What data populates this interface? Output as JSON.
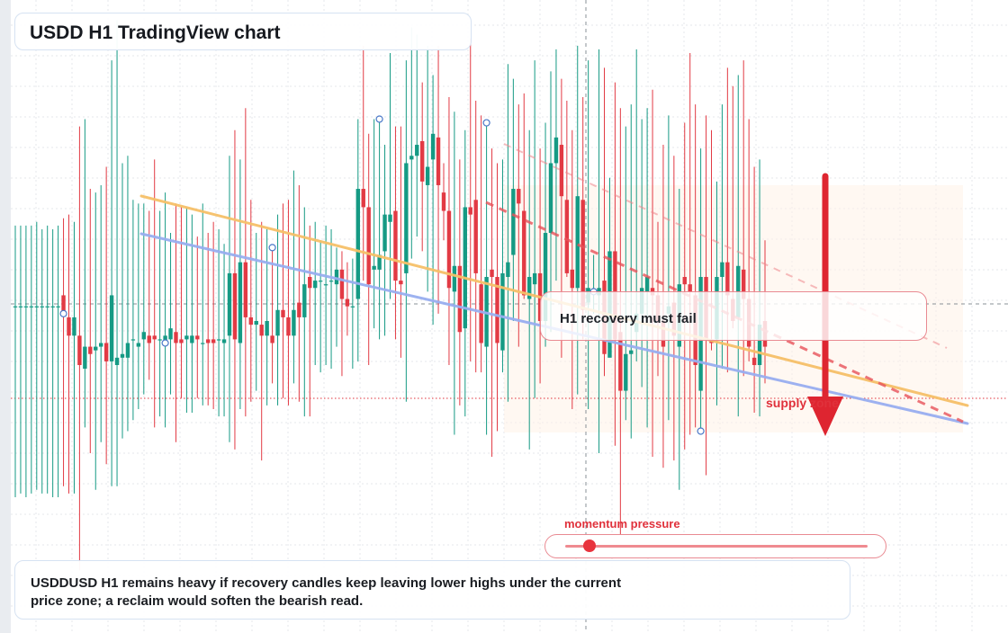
{
  "header": {
    "title": "USDD H1 TradingView chart"
  },
  "annotations": {
    "callout": "H1 recovery must fail",
    "zone_label": "supply zone",
    "momentum_label": "momentum pressure",
    "momentum_level": 0.08
  },
  "caption": {
    "text": "USDDUSD H1 remains heavy if recovery candles keep leaving lower highs under the current price zone; a reclaim would soften the bearish read."
  },
  "colors": {
    "up": "#159a84",
    "down": "#e23a44",
    "trend_orange": "#f6c069",
    "trend_blue": "#98aef0",
    "accent": "#e0313b"
  },
  "chart_data": {
    "type": "candlestick",
    "symbol": "USDDUSD",
    "timeframe": "H1",
    "ohlc": [
      [
        89,
        89,
        37,
        111
      ],
      [
        89,
        89,
        38,
        111
      ],
      [
        89,
        89,
        37,
        111
      ],
      [
        89,
        89,
        38,
        111
      ],
      [
        89,
        89,
        39,
        112
      ],
      [
        89,
        89,
        38,
        110
      ],
      [
        89,
        89,
        38,
        111
      ],
      [
        89,
        89,
        37,
        110
      ],
      [
        89,
        89,
        37,
        111
      ],
      [
        92,
        87,
        40,
        113
      ],
      [
        86,
        81,
        38,
        114
      ],
      [
        81,
        86,
        38,
        112
      ],
      [
        81,
        73,
        17,
        138
      ],
      [
        72,
        78,
        56,
        140
      ],
      [
        78,
        76,
        49,
        121
      ],
      [
        77,
        78,
        39,
        120
      ],
      [
        78,
        79,
        52,
        122
      ],
      [
        79,
        74,
        46,
        127
      ],
      [
        74,
        92,
        40,
        156
      ],
      [
        73,
        75,
        40,
        167
      ],
      [
        75,
        76,
        53,
        128
      ],
      [
        75,
        79,
        55,
        130
      ],
      [
        80,
        80,
        58,
        118
      ],
      [
        78,
        79,
        61,
        117
      ],
      [
        80,
        82,
        65,
        117
      ],
      [
        81,
        79,
        69,
        115
      ],
      [
        81,
        80,
        56,
        129
      ],
      [
        80,
        80,
        59,
        115
      ],
      [
        79,
        81,
        56,
        120
      ],
      [
        80,
        83,
        65,
        109
      ],
      [
        82,
        79,
        52,
        117
      ],
      [
        80,
        79,
        64,
        116
      ],
      [
        80,
        81,
        60,
        116
      ],
      [
        79,
        81,
        60,
        114
      ],
      [
        81,
        80,
        64,
        108
      ],
      [
        79,
        79,
        62,
        117
      ],
      [
        80,
        79,
        62,
        109
      ],
      [
        80,
        79,
        61,
        112
      ],
      [
        80,
        80,
        59,
        110
      ],
      [
        79,
        80,
        59,
        106
      ],
      [
        81,
        98,
        52,
        130
      ],
      [
        98,
        80,
        50,
        137
      ],
      [
        79,
        101,
        61,
        129
      ],
      [
        101,
        86,
        59,
        143
      ],
      [
        86,
        84,
        63,
        118
      ],
      [
        84,
        85,
        66,
        109
      ],
      [
        84,
        81,
        47,
        112
      ],
      [
        81,
        85,
        62,
        110
      ],
      [
        81,
        79,
        68,
        105
      ],
      [
        81,
        88,
        62,
        114
      ],
      [
        88,
        86,
        64,
        117
      ],
      [
        86,
        81,
        62,
        118
      ],
      [
        81,
        88,
        68,
        126
      ],
      [
        90,
        86,
        63,
        122
      ],
      [
        86,
        95,
        59,
        116
      ],
      [
        97,
        94,
        59,
        111
      ],
      [
        94,
        96,
        73,
        112
      ],
      [
        96,
        96,
        71,
        107
      ],
      [
        95,
        95,
        73,
        111
      ],
      [
        96,
        96,
        72,
        110
      ],
      [
        95,
        99,
        78,
        105
      ],
      [
        99,
        91,
        70,
        104
      ],
      [
        91,
        89,
        81,
        101
      ],
      [
        89,
        89,
        72,
        102
      ],
      [
        91,
        121,
        74,
        140
      ],
      [
        121,
        116,
        96,
        160
      ],
      [
        116,
        95,
        73,
        136
      ],
      [
        99,
        100,
        83,
        140
      ],
      [
        99,
        103,
        80,
        140
      ],
      [
        104,
        114,
        81,
        133
      ],
      [
        112,
        114,
        91,
        158
      ],
      [
        115,
        96,
        80,
        138
      ],
      [
        96,
        95,
        75,
        138
      ],
      [
        98,
        128,
        63,
        156
      ],
      [
        129,
        130,
        102,
        165
      ],
      [
        130,
        133,
        108,
        163
      ],
      [
        134,
        123,
        104,
        150
      ],
      [
        122,
        127,
        93,
        160
      ],
      [
        129,
        136,
        84,
        152
      ],
      [
        135,
        122,
        87,
        160
      ],
      [
        120,
        115,
        107,
        128
      ],
      [
        115,
        94,
        73,
        146
      ],
      [
        93,
        100,
        54,
        142
      ],
      [
        100,
        82,
        62,
        129
      ],
      [
        83,
        116,
        59,
        137
      ],
      [
        116,
        114,
        74,
        162
      ],
      [
        118,
        98,
        71,
        145
      ],
      [
        95,
        79,
        71,
        141
      ],
      [
        78,
        97,
        54,
        139
      ],
      [
        99,
        97,
        48,
        132
      ],
      [
        97,
        79,
        55,
        128
      ],
      [
        77,
        98,
        71,
        129
      ],
      [
        97,
        101,
        63,
        155
      ],
      [
        103,
        121,
        85,
        151
      ],
      [
        121,
        117,
        78,
        144
      ],
      [
        115,
        92,
        91,
        147
      ],
      [
        91,
        97,
        50,
        137
      ],
      [
        95,
        98,
        64,
        156
      ],
      [
        98,
        85,
        68,
        132
      ],
      [
        85,
        109,
        78,
        139
      ],
      [
        109,
        128,
        82,
        153
      ],
      [
        128,
        135,
        96,
        159
      ],
      [
        133,
        119,
        75,
        151
      ],
      [
        118,
        98,
        97,
        145
      ],
      [
        99,
        94,
        61,
        137
      ],
      [
        94,
        119,
        65,
        160
      ],
      [
        118,
        88,
        80,
        146
      ],
      [
        90,
        94,
        61,
        156
      ],
      [
        93,
        93,
        87,
        103
      ],
      [
        92,
        94,
        49,
        159
      ],
      [
        96,
        76,
        70,
        154
      ],
      [
        75,
        104,
        76,
        124
      ],
      [
        104,
        80,
        51,
        150
      ],
      [
        82,
        66,
        25,
        143
      ],
      [
        66,
        76,
        58,
        138
      ],
      [
        76,
        77,
        53,
        144
      ],
      [
        82,
        87,
        74,
        159
      ],
      [
        87,
        94,
        67,
        140
      ],
      [
        93,
        97,
        56,
        143
      ],
      [
        94,
        92,
        48,
        148
      ],
      [
        92,
        85,
        70,
        112
      ],
      [
        85,
        78,
        45,
        133
      ],
      [
        87,
        89,
        58,
        141
      ],
      [
        90,
        81,
        47,
        130
      ],
      [
        78,
        95,
        39,
        121
      ],
      [
        97,
        95,
        50,
        139
      ],
      [
        95,
        93,
        54,
        158
      ],
      [
        92,
        73,
        56,
        144
      ],
      [
        66,
        97,
        55,
        132
      ],
      [
        97,
        80,
        43,
        141
      ],
      [
        80,
        79,
        77,
        137
      ],
      [
        80,
        97,
        62,
        123
      ],
      [
        97,
        101,
        72,
        144
      ],
      [
        101,
        92,
        71,
        154
      ],
      [
        91,
        85,
        83,
        149
      ],
      [
        86,
        100,
        59,
        152
      ],
      [
        99,
        91,
        70,
        156
      ],
      [
        91,
        78,
        74,
        140
      ],
      [
        75,
        73,
        60,
        127
      ],
      [
        73,
        84,
        59,
        129
      ],
      [
        85,
        78,
        68,
        107
      ]
    ],
    "price_scale": "not shown",
    "time_scale": "not shown"
  }
}
